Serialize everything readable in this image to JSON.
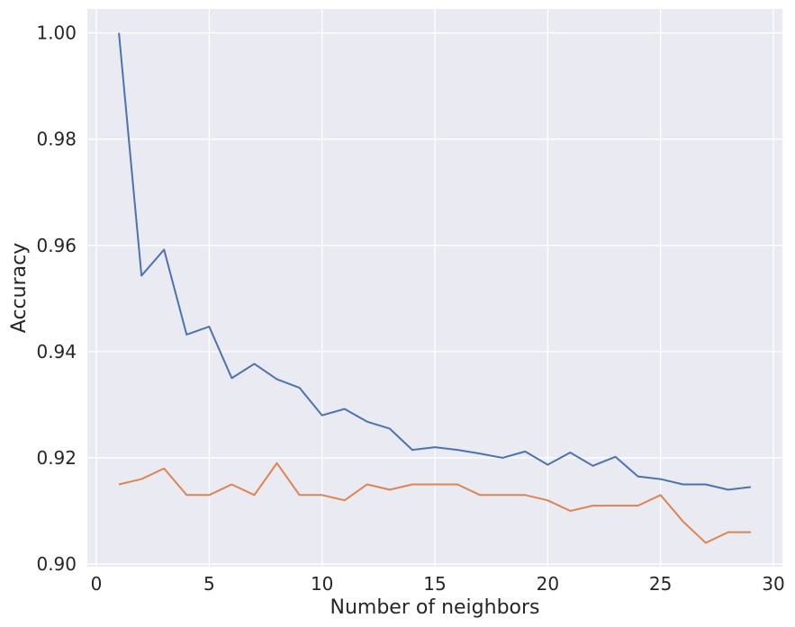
{
  "chart_data": {
    "type": "line",
    "title": "",
    "xlabel": "Number of neighbors",
    "ylabel": "Accuracy",
    "xlim": [
      -0.4,
      30.4
    ],
    "ylim": [
      0.8995,
      1.0045
    ],
    "xticks": [
      0,
      5,
      10,
      15,
      20,
      25,
      30
    ],
    "xtick_labels": [
      "0",
      "5",
      "10",
      "15",
      "20",
      "25",
      "30"
    ],
    "yticks": [
      0.9,
      0.92,
      0.94,
      0.96,
      0.98,
      1.0
    ],
    "ytick_labels": [
      "0.90",
      "0.92",
      "0.94",
      "0.96",
      "0.98",
      "1.00"
    ],
    "grid": true,
    "background": "#eaeaf2",
    "grid_color": "#ffffff",
    "x": [
      1,
      2,
      3,
      4,
      5,
      6,
      7,
      8,
      9,
      10,
      11,
      12,
      13,
      14,
      15,
      16,
      17,
      18,
      19,
      20,
      21,
      22,
      23,
      24,
      25,
      26,
      27,
      28,
      29
    ],
    "series": [
      {
        "color": "#4c72b0",
        "values": [
          1.0,
          0.9543,
          0.9592,
          0.9432,
          0.9447,
          0.935,
          0.9377,
          0.9348,
          0.9332,
          0.928,
          0.9292,
          0.9268,
          0.9255,
          0.9215,
          0.922,
          0.9215,
          0.9208,
          0.92,
          0.9212,
          0.9187,
          0.921,
          0.9185,
          0.9202,
          0.9165,
          0.916,
          0.915,
          0.915,
          0.914,
          0.9145
        ]
      },
      {
        "color": "#dd8452",
        "values": [
          0.915,
          0.916,
          0.918,
          0.913,
          0.913,
          0.915,
          0.913,
          0.919,
          0.913,
          0.913,
          0.912,
          0.915,
          0.914,
          0.915,
          0.915,
          0.915,
          0.913,
          0.913,
          0.913,
          0.912,
          0.91,
          0.911,
          0.911,
          0.911,
          0.913,
          0.908,
          0.904,
          0.906,
          0.906
        ]
      }
    ]
  }
}
